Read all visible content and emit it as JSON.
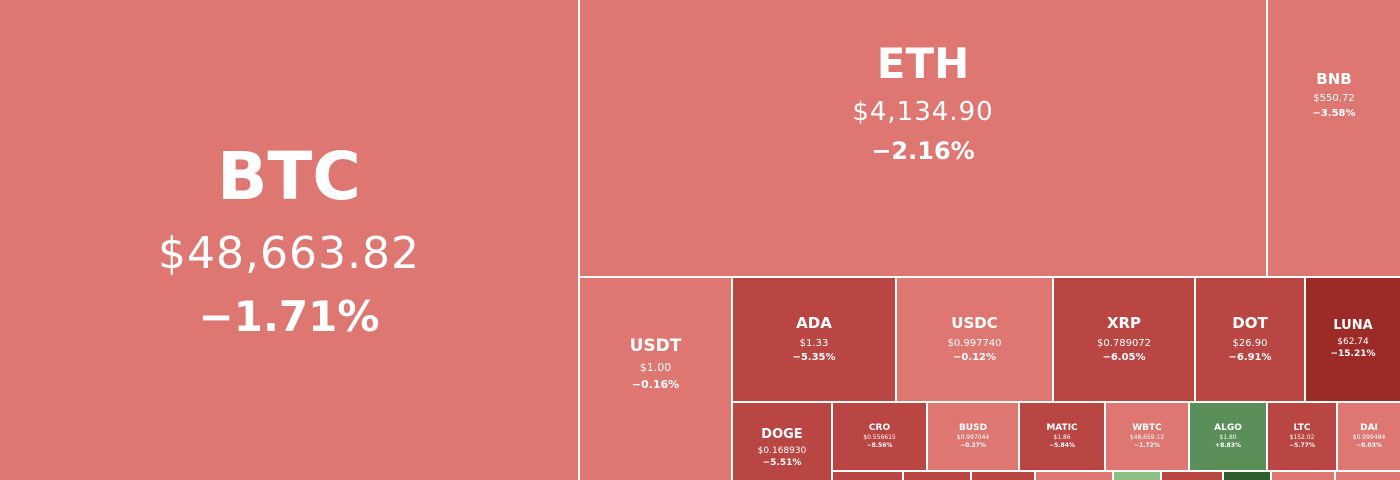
{
  "tiles": {
    "btc": {
      "symbol": "BTC",
      "price": "$48,663.82",
      "change": "−1.71%",
      "color": "#de7772"
    },
    "eth": {
      "symbol": "ETH",
      "price": "$4,134.90",
      "change": "−2.16%",
      "color": "#de7772"
    },
    "bnb": {
      "symbol": "BNB",
      "price": "$550.72",
      "change": "−3.58%",
      "color": "#de7772"
    },
    "usdt": {
      "symbol": "USDT",
      "price": "$1.00",
      "change": "−0.16%",
      "color": "#de7772"
    },
    "ada": {
      "symbol": "ADA",
      "price": "$1.33",
      "change": "−5.35%",
      "color": "#b94643"
    },
    "usdc": {
      "symbol": "USDC",
      "price": "$0.997740",
      "change": "−0.12%",
      "color": "#de7772"
    },
    "xrp": {
      "symbol": "XRP",
      "price": "$0.789072",
      "change": "−6.05%",
      "color": "#b94643"
    },
    "dot": {
      "symbol": "DOT",
      "price": "$26.90",
      "change": "−6.91%",
      "color": "#b94643"
    },
    "luna": {
      "symbol": "LUNA",
      "price": "$62.74",
      "change": "−15.21%",
      "color": "#9c2b28"
    },
    "doge": {
      "symbol": "DOGE",
      "price": "$0.168930",
      "change": "−5.51%",
      "color": "#b94643"
    },
    "cro": {
      "symbol": "CRO",
      "price": "$0.556615",
      "change": "−8.56%",
      "color": "#b94643"
    },
    "busd": {
      "symbol": "BUSD",
      "price": "$0.997044",
      "change": "−0.27%",
      "color": "#de7772"
    },
    "matic": {
      "symbol": "MATIC",
      "price": "$1.86",
      "change": "−5.84%",
      "color": "#b94643"
    },
    "wbtc": {
      "symbol": "WBTC",
      "price": "$48,659.12",
      "change": "−1.72%",
      "color": "#de7772"
    },
    "algo": {
      "symbol": "ALGO",
      "price": "$1.80",
      "change": "+8.83%",
      "color": "#5b8f5a"
    },
    "ltc": {
      "symbol": "LTC",
      "price": "$152.02",
      "change": "−5.77%",
      "color": "#b94643"
    },
    "dai": {
      "symbol": "DAI",
      "price": "$0.999484",
      "change": "−0.03%",
      "color": "#de7772"
    }
  },
  "bottom_strip": [
    {
      "color": "#b94643"
    },
    {
      "color": "#b94643"
    },
    {
      "color": "#b94643"
    },
    {
      "color": "#de7772"
    },
    {
      "color": "#8dbf84"
    },
    {
      "color": "#b94643"
    },
    {
      "color": "#2f5e2e"
    },
    {
      "color": "#de7772"
    },
    {
      "color": "#de7772"
    }
  ]
}
